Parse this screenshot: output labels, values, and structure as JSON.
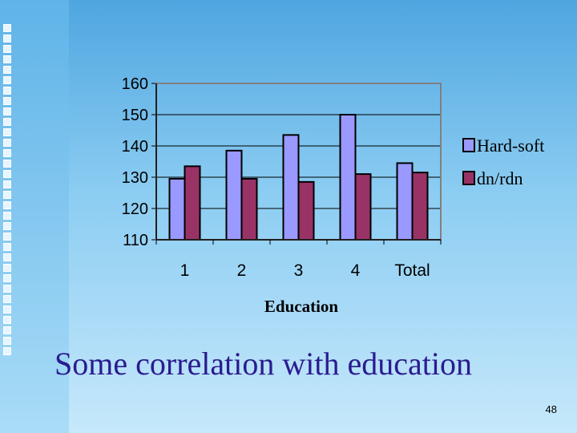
{
  "slide": {
    "subtitle": "Some correlation with education",
    "page_number": "48"
  },
  "colors": {
    "series1": "#9999ff",
    "series2": "#993366",
    "plot_border": "#808080",
    "grid": "#000000"
  },
  "chart_data": {
    "type": "bar",
    "categories": [
      "1",
      "2",
      "3",
      "4",
      "Total"
    ],
    "series": [
      {
        "name": "Hard-soft",
        "values": [
          129.5,
          138.5,
          143.5,
          150,
          134.5
        ]
      },
      {
        "name": "dn/rdn",
        "values": [
          133.5,
          129.5,
          128.5,
          131,
          131.5
        ]
      }
    ],
    "xlabel": "Education",
    "ylabel": "",
    "ylim": [
      110,
      160
    ],
    "yticks": [
      110,
      120,
      130,
      140,
      150,
      160
    ],
    "grid": true,
    "legend_position": "right"
  }
}
